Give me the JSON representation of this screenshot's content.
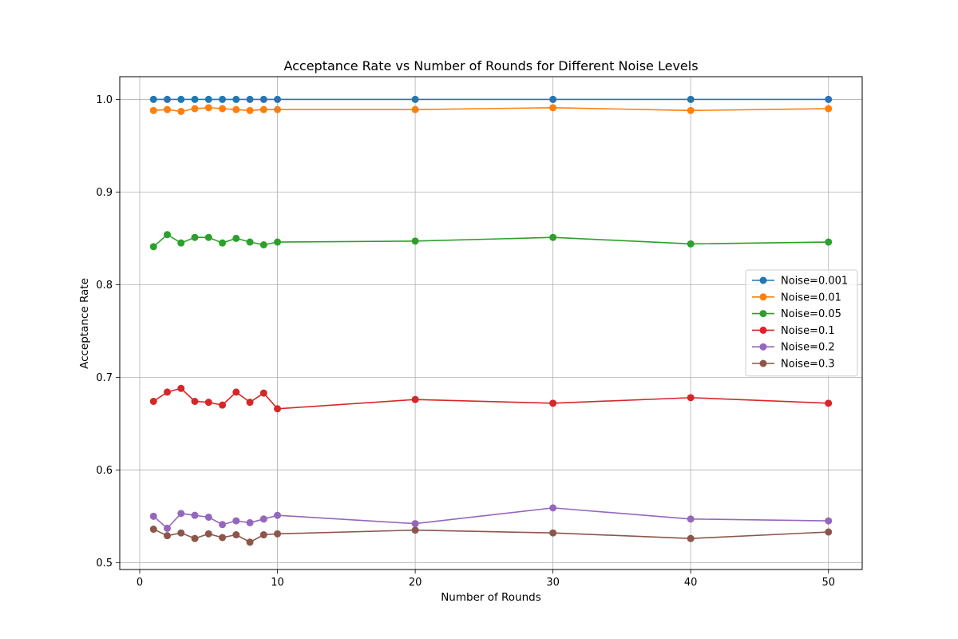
{
  "chart_data": {
    "type": "line",
    "title": "Acceptance Rate vs Number of Rounds for Different Noise Levels",
    "xlabel": "Number of Rounds",
    "ylabel": "Acceptance Rate",
    "xlim": [
      -1.45,
      52.45
    ],
    "ylim": [
      0.4925,
      1.0245
    ],
    "xticks": [
      0,
      10,
      20,
      30,
      40,
      50
    ],
    "yticks": [
      0.5,
      0.6,
      0.7,
      0.8,
      0.9,
      1.0
    ],
    "xtick_labels": [
      "0",
      "10",
      "20",
      "30",
      "40",
      "50"
    ],
    "ytick_labels": [
      "0.5",
      "0.6",
      "0.7",
      "0.8",
      "0.9",
      "1.0"
    ],
    "grid": true,
    "legend_position": "center-right",
    "x": [
      1,
      2,
      3,
      4,
      5,
      6,
      7,
      8,
      9,
      10,
      20,
      30,
      40,
      50
    ],
    "series": [
      {
        "name": "Noise=0.001",
        "color": "#1f77b4",
        "values": [
          1.0,
          1.0,
          1.0,
          1.0,
          1.0,
          1.0,
          1.0,
          1.0,
          1.0,
          1.0,
          1.0,
          1.0,
          1.0,
          1.0
        ]
      },
      {
        "name": "Noise=0.01",
        "color": "#ff7f0e",
        "values": [
          0.988,
          0.989,
          0.987,
          0.99,
          0.991,
          0.99,
          0.989,
          0.988,
          0.989,
          0.989,
          0.989,
          0.991,
          0.988,
          0.99
        ]
      },
      {
        "name": "Noise=0.05",
        "color": "#2ca02c",
        "values": [
          0.841,
          0.854,
          0.845,
          0.851,
          0.851,
          0.845,
          0.85,
          0.846,
          0.843,
          0.846,
          0.847,
          0.851,
          0.844,
          0.846
        ]
      },
      {
        "name": "Noise=0.1",
        "color": "#d62728",
        "values": [
          0.674,
          0.684,
          0.688,
          0.674,
          0.673,
          0.67,
          0.684,
          0.673,
          0.683,
          0.666,
          0.676,
          0.672,
          0.678,
          0.672
        ]
      },
      {
        "name": "Noise=0.2",
        "color": "#9467bd",
        "values": [
          0.55,
          0.537,
          0.553,
          0.551,
          0.549,
          0.541,
          0.545,
          0.543,
          0.547,
          0.551,
          0.542,
          0.559,
          0.547,
          0.545
        ]
      },
      {
        "name": "Noise=0.3",
        "color": "#8c564b",
        "values": [
          0.536,
          0.529,
          0.532,
          0.526,
          0.531,
          0.527,
          0.53,
          0.522,
          0.53,
          0.531,
          0.535,
          0.532,
          0.526,
          0.533
        ]
      }
    ]
  }
}
